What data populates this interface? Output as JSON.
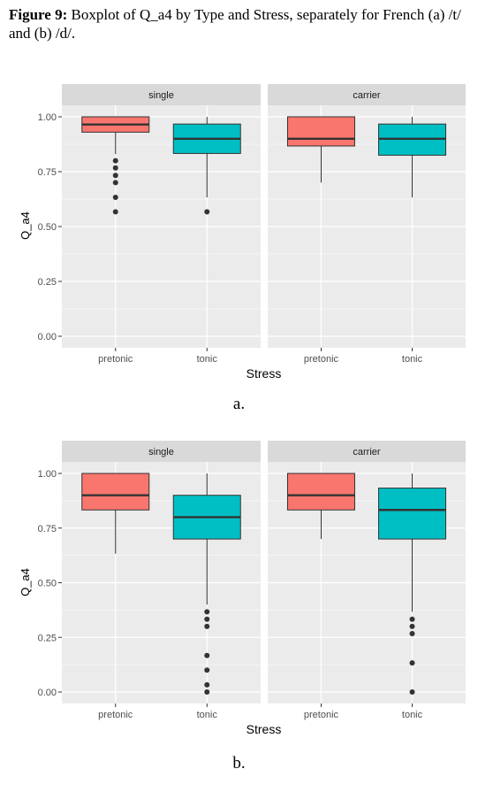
{
  "caption": {
    "bold": "Figure 9:",
    "text": " Boxplot of Q_a4 by Type and Stress, separately for French (a) /t/ and (b) /d/."
  },
  "colors": {
    "pretonic": "#F8766D",
    "tonic": "#00BFC4",
    "panel_bg": "#EBEBEB",
    "strip_bg": "#D9D9D9",
    "grid": "#FFFFFF"
  },
  "chart_data": [
    {
      "type": "boxplot",
      "sub_label": "a.",
      "xlabel": "Stress",
      "ylabel": "Q_a4",
      "ylim": [
        0,
        1.05
      ],
      "yticks": [
        0,
        0.25,
        0.5,
        0.75,
        1.0
      ],
      "ytick_labels": [
        "0.00",
        "0.25",
        "0.50",
        "0.75",
        "1.00"
      ],
      "categories": [
        "pretonic",
        "tonic"
      ],
      "facets": [
        {
          "label": "single",
          "boxes": [
            {
              "category": "pretonic",
              "lower": 0.93,
              "q1": 0.93,
              "median": 0.965,
              "q3": 1.0,
              "upper": 1.0,
              "whisker_low": 0.83,
              "outliers": [
                0.8,
                0.767,
                0.733,
                0.7,
                0.633,
                0.567
              ]
            },
            {
              "category": "tonic",
              "q1": 0.833,
              "median": 0.9,
              "q3": 0.967,
              "whisker_low": 0.633,
              "whisker_high": 1.0,
              "outliers": [
                0.567
              ]
            }
          ]
        },
        {
          "label": "carrier",
          "boxes": [
            {
              "category": "pretonic",
              "q1": 0.867,
              "median": 0.9,
              "q3": 1.0,
              "whisker_low": 0.7,
              "whisker_high": 1.0,
              "outliers": []
            },
            {
              "category": "tonic",
              "q1": 0.825,
              "median": 0.9,
              "q3": 0.967,
              "whisker_low": 0.633,
              "whisker_high": 1.0,
              "outliers": []
            }
          ]
        }
      ]
    },
    {
      "type": "boxplot",
      "sub_label": "b.",
      "xlabel": "Stress",
      "ylabel": "Q_a4",
      "ylim": [
        0,
        1.05
      ],
      "yticks": [
        0,
        0.25,
        0.5,
        0.75,
        1.0
      ],
      "ytick_labels": [
        "0.00",
        "0.25",
        "0.50",
        "0.75",
        "1.00"
      ],
      "categories": [
        "pretonic",
        "tonic"
      ],
      "facets": [
        {
          "label": "single",
          "boxes": [
            {
              "category": "pretonic",
              "q1": 0.833,
              "median": 0.9,
              "q3": 1.0,
              "whisker_low": 0.633,
              "whisker_high": 1.0,
              "outliers": []
            },
            {
              "category": "tonic",
              "q1": 0.7,
              "median": 0.8,
              "q3": 0.9,
              "whisker_low": 0.4,
              "whisker_high": 1.0,
              "outliers": [
                0.367,
                0.333,
                0.3,
                0.167,
                0.1,
                0.033,
                0.0
              ]
            }
          ]
        },
        {
          "label": "carrier",
          "boxes": [
            {
              "category": "pretonic",
              "q1": 0.833,
              "median": 0.9,
              "q3": 1.0,
              "whisker_low": 0.7,
              "whisker_high": 1.0,
              "outliers": []
            },
            {
              "category": "tonic",
              "q1": 0.7,
              "median": 0.833,
              "q3": 0.933,
              "whisker_low": 0.367,
              "whisker_high": 1.0,
              "outliers": [
                0.333,
                0.3,
                0.267,
                0.133,
                0.0
              ]
            }
          ]
        }
      ]
    }
  ]
}
